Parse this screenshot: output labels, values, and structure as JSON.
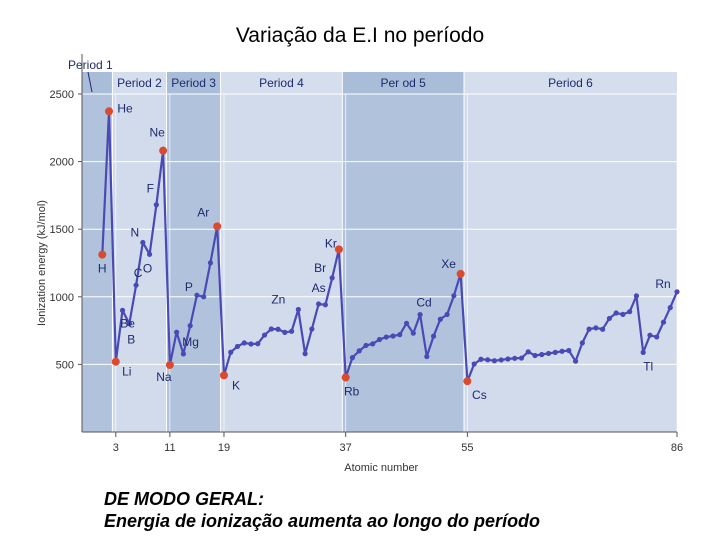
{
  "slide_title": "Variação da E.I no período",
  "caption": {
    "line1": "DE MODO GERAL:",
    "line2": "Energia de ionização aumenta ao longo do período"
  },
  "colors": {
    "plot_bg": "#c6d4e6",
    "band_light": "#d4deed",
    "band_dark": "#a9bdd8",
    "line": "#4a4ab6",
    "point": "#4a4ab6",
    "highlight": "#d94a2e",
    "label": "#1e2a6e"
  },
  "chart_data": {
    "type": "line",
    "title": "",
    "xlabel": "Atomic number",
    "ylabel": "Ionization energy (kJ/mol)",
    "xlim": [
      0,
      86
    ],
    "ylim": [
      0,
      2500
    ],
    "yticks": [
      500,
      1000,
      1500,
      2000,
      2500
    ],
    "xticks": [
      3,
      11,
      19,
      37,
      55,
      86
    ],
    "grid": true,
    "periods": [
      {
        "label": "Period 1",
        "start": 1,
        "end": 2
      },
      {
        "label": "Period 2",
        "start": 3,
        "end": 10
      },
      {
        "label": "Period 3",
        "start": 11,
        "end": 18
      },
      {
        "label": "Period 4",
        "start": 19,
        "end": 36
      },
      {
        "label": "Per od 5",
        "start": 37,
        "end": 54
      },
      {
        "label": "Period 6",
        "start": 55,
        "end": 86
      }
    ],
    "x": [
      1,
      2,
      3,
      4,
      5,
      6,
      7,
      8,
      9,
      10,
      11,
      12,
      13,
      14,
      15,
      16,
      17,
      18,
      19,
      20,
      21,
      22,
      23,
      24,
      25,
      26,
      27,
      28,
      29,
      30,
      31,
      32,
      33,
      34,
      35,
      36,
      37,
      38,
      39,
      40,
      41,
      42,
      43,
      44,
      45,
      46,
      47,
      48,
      49,
      50,
      51,
      52,
      53,
      54,
      55,
      56,
      57,
      58,
      59,
      60,
      61,
      62,
      63,
      64,
      65,
      66,
      67,
      68,
      69,
      70,
      71,
      72,
      73,
      74,
      75,
      76,
      77,
      78,
      79,
      80,
      81,
      82,
      83,
      84,
      85,
      86
    ],
    "y": [
      1312,
      2372,
      520,
      900,
      801,
      1086,
      1402,
      1314,
      1681,
      2081,
      496,
      738,
      578,
      786,
      1012,
      1000,
      1251,
      1521,
      419,
      590,
      633,
      659,
      651,
      653,
      717,
      762,
      760,
      737,
      745,
      906,
      579,
      762,
      947,
      941,
      1140,
      1351,
      403,
      550,
      600,
      640,
      652,
      684,
      702,
      710,
      720,
      804,
      731,
      868,
      558,
      709,
      834,
      869,
      1008,
      1170,
      376,
      503,
      538,
      534,
      527,
      533,
      540,
      545,
      547,
      593,
      566,
      573,
      581,
      589,
      597,
      603,
      524,
      659,
      761,
      770,
      760,
      840,
      880,
      870,
      890,
      1007,
      589,
      716,
      703,
      812,
      920,
      1037
    ],
    "labeled_points": [
      {
        "label": "H",
        "x": 1,
        "highlight": true
      },
      {
        "label": "He",
        "x": 2,
        "highlight": true
      },
      {
        "label": "Li",
        "x": 3,
        "highlight": true
      },
      {
        "label": "Be",
        "x": 4
      },
      {
        "label": "B",
        "x": 5
      },
      {
        "label": "C",
        "x": 6
      },
      {
        "label": "N",
        "x": 7
      },
      {
        "label": "O",
        "x": 8
      },
      {
        "label": "F",
        "x": 9
      },
      {
        "label": "Ne",
        "x": 10,
        "highlight": true
      },
      {
        "label": "Na",
        "x": 11,
        "highlight": true
      },
      {
        "label": "Mg",
        "x": 12
      },
      {
        "label": "P",
        "x": 15
      },
      {
        "label": "Ar",
        "x": 18,
        "highlight": true
      },
      {
        "label": "K",
        "x": 19,
        "highlight": true
      },
      {
        "label": "Zn",
        "x": 30
      },
      {
        "label": "As",
        "x": 33
      },
      {
        "label": "Br",
        "x": 35
      },
      {
        "label": "Kr",
        "x": 36,
        "highlight": true
      },
      {
        "label": "Rb",
        "x": 37,
        "highlight": true
      },
      {
        "label": "Cd",
        "x": 48
      },
      {
        "label": "Xe",
        "x": 54,
        "highlight": true
      },
      {
        "label": "Cs",
        "x": 55,
        "highlight": true
      },
      {
        "label": "Tl",
        "x": 81
      },
      {
        "label": "Rn",
        "x": 86
      }
    ]
  }
}
